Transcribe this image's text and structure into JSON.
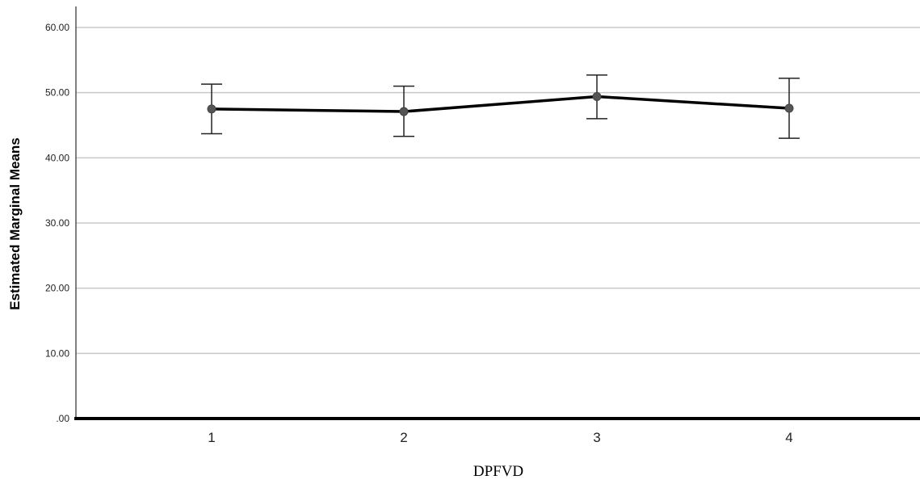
{
  "chart_data": {
    "type": "line",
    "title": "",
    "xlabel": "DPFVD",
    "ylabel": "Estimated Marginal Means",
    "categories": [
      "1",
      "2",
      "3",
      "4"
    ],
    "series": [
      {
        "values": [
          47.5,
          47.1,
          49.4,
          47.6
        ],
        "error_low": [
          43.7,
          43.3,
          46.0,
          43.0
        ],
        "error_high": [
          51.3,
          51.0,
          52.7,
          52.2
        ]
      }
    ],
    "ylim": [
      0,
      60
    ],
    "yticks": [
      0,
      10,
      20,
      30,
      40,
      50,
      60
    ],
    "ytick_labels": [
      ".00",
      "10.00",
      "20.00",
      "30.00",
      "40.00",
      "50.00",
      "60.00"
    ],
    "grid": true,
    "legend": "none",
    "colors": {
      "line": "#000000",
      "marker": "#555555",
      "grid": "#c8c8c8",
      "error_bar": "#222222",
      "axis": "#000000"
    }
  }
}
